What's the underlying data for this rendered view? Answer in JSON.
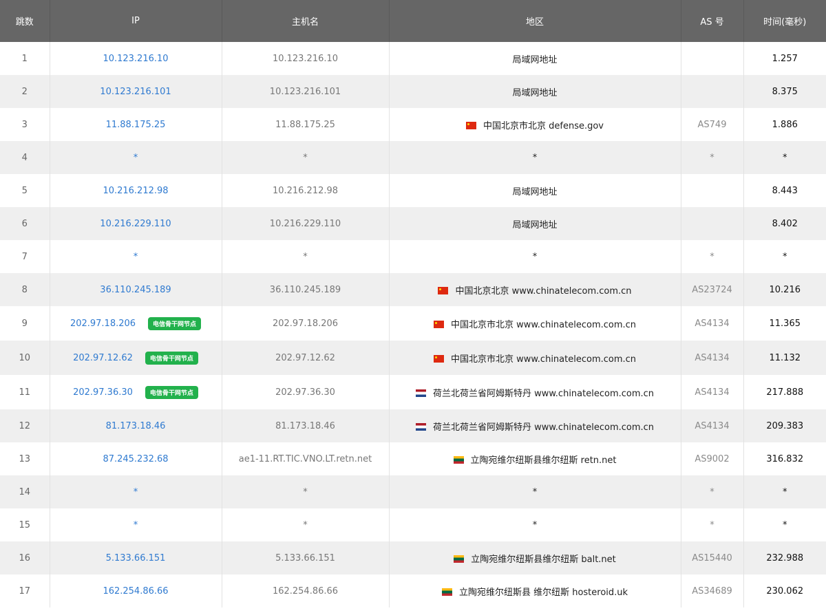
{
  "headers": [
    "跳数",
    "IP",
    "主机名",
    "地区",
    "AS 号",
    "时间(毫秒)"
  ],
  "badge_color": "#22b14c",
  "rows": [
    {
      "hop": "1",
      "ip": "10.123.216.10",
      "host": "10.123.216.10",
      "flag": "",
      "region": "局域网地址",
      "as": "",
      "time": "1.257"
    },
    {
      "hop": "2",
      "ip": "10.123.216.101",
      "host": "10.123.216.101",
      "flag": "",
      "region": "局域网地址",
      "as": "",
      "time": "8.375"
    },
    {
      "hop": "3",
      "ip": "11.88.175.25",
      "host": "11.88.175.25",
      "flag": "cn",
      "region": "中国北京市北京 defense.gov",
      "as": "AS749",
      "time": "1.886"
    },
    {
      "hop": "4",
      "ip": "*",
      "host": "*",
      "flag": "",
      "region": "*",
      "as": "*",
      "time": "*"
    },
    {
      "hop": "5",
      "ip": "10.216.212.98",
      "host": "10.216.212.98",
      "flag": "",
      "region": "局域网地址",
      "as": "",
      "time": "8.443"
    },
    {
      "hop": "6",
      "ip": "10.216.229.110",
      "host": "10.216.229.110",
      "flag": "",
      "region": "局域网地址",
      "as": "",
      "time": "8.402"
    },
    {
      "hop": "7",
      "ip": "*",
      "host": "*",
      "flag": "",
      "region": "*",
      "as": "*",
      "time": "*"
    },
    {
      "hop": "8",
      "ip": "36.110.245.189",
      "host": "36.110.245.189",
      "flag": "cn",
      "region": "中国北京北京 www.chinatelecom.com.cn",
      "as": "AS23724",
      "time": "10.216"
    },
    {
      "hop": "9",
      "ip": "202.97.18.206",
      "badge": "电信骨干网节点",
      "host": "202.97.18.206",
      "flag": "cn",
      "region": "中国北京市北京 www.chinatelecom.com.cn",
      "as": "AS4134",
      "time": "11.365"
    },
    {
      "hop": "10",
      "ip": "202.97.12.62",
      "badge": "电信骨干网节点",
      "host": "202.97.12.62",
      "flag": "cn",
      "region": "中国北京市北京 www.chinatelecom.com.cn",
      "as": "AS4134",
      "time": "11.132"
    },
    {
      "hop": "11",
      "ip": "202.97.36.30",
      "badge": "电信骨干网节点",
      "host": "202.97.36.30",
      "flag": "nl",
      "region": "荷兰北荷兰省阿姆斯特丹 www.chinatelecom.com.cn",
      "as": "AS4134",
      "time": "217.888"
    },
    {
      "hop": "12",
      "ip": "81.173.18.46",
      "host": "81.173.18.46",
      "flag": "nl",
      "region": "荷兰北荷兰省阿姆斯特丹 www.chinatelecom.com.cn",
      "as": "AS4134",
      "time": "209.383"
    },
    {
      "hop": "13",
      "ip": "87.245.232.68",
      "host": "ae1-11.RT.TIC.VNO.LT.retn.net",
      "flag": "lt",
      "region": "立陶宛维尔纽斯县维尔纽斯 retn.net",
      "as": "AS9002",
      "time": "316.832"
    },
    {
      "hop": "14",
      "ip": "*",
      "host": "*",
      "flag": "",
      "region": "*",
      "as": "*",
      "time": "*"
    },
    {
      "hop": "15",
      "ip": "*",
      "host": "*",
      "flag": "",
      "region": "*",
      "as": "*",
      "time": "*"
    },
    {
      "hop": "16",
      "ip": "5.133.66.151",
      "host": "5.133.66.151",
      "flag": "lt",
      "region": "立陶宛维尔纽斯县维尔纽斯 balt.net",
      "as": "AS15440",
      "time": "232.988"
    },
    {
      "hop": "17",
      "ip": "162.254.86.66",
      "host": "162.254.86.66",
      "flag": "lt",
      "region": "立陶宛维尔纽斯县 维尔纽斯 hosteroid.uk",
      "as": "AS34689",
      "time": "230.062"
    }
  ]
}
